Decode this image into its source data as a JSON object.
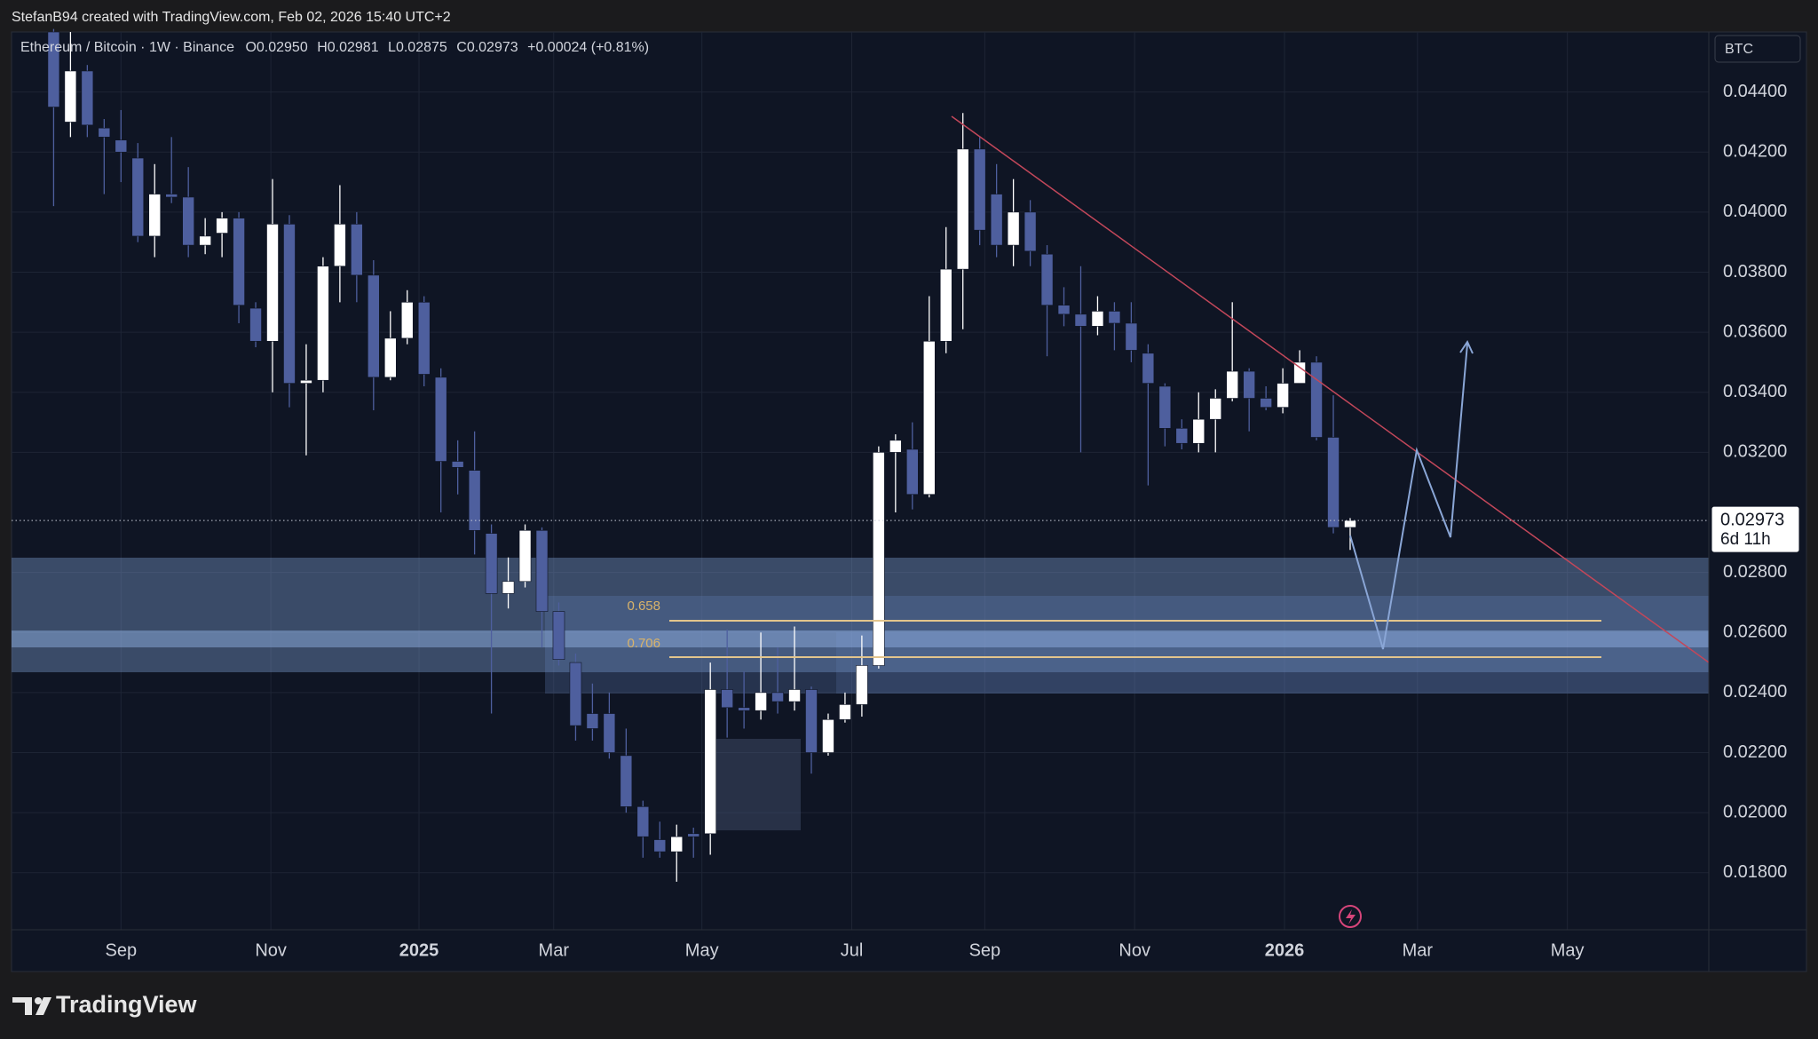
{
  "chart_data": {
    "type": "candlestick",
    "attribution": "StefanB94 created with TradingView.com, Feb 02, 2026 15:40 UTC+2",
    "title": "Ethereum / Bitcoin · 1W · Binance",
    "legend": [
      {
        "label": "O",
        "text": "0.02950"
      },
      {
        "label": "H",
        "text": "0.02981"
      },
      {
        "label": "L",
        "text": "0.02875"
      },
      {
        "label": "C",
        "text": "0.02973"
      }
    ],
    "change": "+0.00024 (+0.81%)",
    "currency": "BTC",
    "brand": "TradingView",
    "up_color": "#ffffff",
    "down_color": "#4e5f9e",
    "open": [
      0.046,
      0.043,
      0.0447,
      0.0428,
      0.0424,
      0.0418,
      0.0392,
      0.0406,
      0.0405,
      0.0389,
      0.0393,
      0.0398,
      0.0368,
      0.0357,
      0.0396,
      0.0343,
      0.0344,
      0.0382,
      0.0396,
      0.0379,
      0.0345,
      0.0358,
      0.037,
      0.0345,
      0.0317,
      0.0314,
      0.0293,
      0.0273,
      0.0277,
      0.0294,
      0.0267,
      0.025,
      0.0233,
      0.0233,
      0.0219,
      0.0202,
      0.0191,
      0.0187,
      0.0193,
      0.0193,
      0.0241,
      0.0235,
      0.0234,
      0.024,
      0.0237,
      0.0241,
      0.022,
      0.0231,
      0.0236,
      0.0249,
      0.032,
      0.0321,
      0.0306,
      0.0357,
      0.0381,
      0.0421,
      0.0406,
      0.0389,
      0.04,
      0.0386,
      0.0369,
      0.0366,
      0.0362,
      0.0367,
      0.0363,
      0.0353,
      0.0342,
      0.0328,
      0.0323,
      0.0331,
      0.0338,
      0.0347,
      0.0338,
      0.0335,
      0.0343,
      0.035,
      0.0325,
      0.0295
    ],
    "high": [
      0.0461,
      0.046,
      0.0449,
      0.0431,
      0.0434,
      0.0423,
      0.0416,
      0.0425,
      0.0415,
      0.0398,
      0.04,
      0.04,
      0.037,
      0.0411,
      0.0399,
      0.0356,
      0.0385,
      0.0409,
      0.04,
      0.0384,
      0.0367,
      0.0374,
      0.0372,
      0.0348,
      0.0324,
      0.0327,
      0.0296,
      0.0285,
      0.0296,
      0.0295,
      0.027,
      0.0253,
      0.0243,
      0.024,
      0.0228,
      0.0204,
      0.0197,
      0.0196,
      0.0195,
      0.025,
      0.0261,
      0.0247,
      0.026,
      0.0255,
      0.0262,
      0.0242,
      0.0233,
      0.024,
      0.0259,
      0.0322,
      0.0326,
      0.033,
      0.0372,
      0.0395,
      0.0433,
      0.0425,
      0.0416,
      0.0411,
      0.0404,
      0.0389,
      0.0375,
      0.0382,
      0.0372,
      0.037,
      0.037,
      0.0356,
      0.0343,
      0.0331,
      0.034,
      0.0341,
      0.037,
      0.0348,
      0.0342,
      0.0348,
      0.0354,
      0.0352,
      0.0339,
      0.02981
    ],
    "low": [
      0.0402,
      0.0425,
      0.0425,
      0.0406,
      0.041,
      0.039,
      0.0385,
      0.0403,
      0.0385,
      0.0386,
      0.0385,
      0.0363,
      0.0355,
      0.034,
      0.0335,
      0.0319,
      0.034,
      0.037,
      0.037,
      0.0334,
      0.0344,
      0.0356,
      0.0342,
      0.03,
      0.0306,
      0.0286,
      0.0233,
      0.0268,
      0.0275,
      0.0255,
      0.0249,
      0.0224,
      0.0224,
      0.0218,
      0.02,
      0.0185,
      0.0185,
      0.0177,
      0.0185,
      0.0186,
      0.0225,
      0.0228,
      0.0231,
      0.0233,
      0.0234,
      0.0213,
      0.0219,
      0.023,
      0.0232,
      0.0248,
      0.03,
      0.0301,
      0.0305,
      0.0353,
      0.0361,
      0.0389,
      0.0385,
      0.0382,
      0.0382,
      0.0352,
      0.0362,
      0.032,
      0.0359,
      0.0354,
      0.035,
      0.0309,
      0.0322,
      0.0321,
      0.032,
      0.032,
      0.0337,
      0.0327,
      0.0334,
      0.0333,
      0.0343,
      0.0324,
      0.0293,
      0.02875
    ],
    "close": [
      0.0435,
      0.0447,
      0.0429,
      0.0425,
      0.042,
      0.0392,
      0.0406,
      0.0405,
      0.0389,
      0.0392,
      0.0398,
      0.0369,
      0.0357,
      0.0396,
      0.0343,
      0.0344,
      0.0382,
      0.0396,
      0.0379,
      0.0345,
      0.0358,
      0.037,
      0.0346,
      0.0317,
      0.0315,
      0.0294,
      0.0273,
      0.0277,
      0.0294,
      0.0267,
      0.0251,
      0.0229,
      0.0228,
      0.022,
      0.0202,
      0.0192,
      0.0187,
      0.0192,
      0.0192,
      0.0241,
      0.0235,
      0.0234,
      0.024,
      0.0237,
      0.0241,
      0.022,
      0.0231,
      0.0236,
      0.0249,
      0.032,
      0.0324,
      0.0306,
      0.0357,
      0.0381,
      0.0421,
      0.0394,
      0.0389,
      0.04,
      0.0387,
      0.0369,
      0.0366,
      0.0362,
      0.0367,
      0.0363,
      0.0354,
      0.0343,
      0.0328,
      0.0323,
      0.0331,
      0.0338,
      0.0347,
      0.0338,
      0.0335,
      0.0343,
      0.035,
      0.0325,
      0.0295,
      0.02973
    ],
    "last_price": 0.02973,
    "countdown": "6d 11h",
    "fib_levels": [
      {
        "label": "0.658"
      },
      {
        "label": "0.706"
      }
    ],
    "xlim": [
      -2.5,
      98.3
    ],
    "xticks": [
      {
        "value": 4.0,
        "label": "Sep"
      },
      {
        "value": 12.9,
        "label": "Nov"
      },
      {
        "value": 21.7,
        "label": "2025"
      },
      {
        "value": 29.7,
        "label": "Mar"
      },
      {
        "value": 38.5,
        "label": "May"
      },
      {
        "value": 47.4,
        "label": "Jul"
      },
      {
        "value": 55.3,
        "label": "Sep"
      },
      {
        "value": 64.2,
        "label": "Nov"
      },
      {
        "value": 73.1,
        "label": "2026"
      },
      {
        "value": 81.0,
        "label": "Mar"
      },
      {
        "value": 89.9,
        "label": "May"
      }
    ],
    "ylim": [
      0.0161,
      0.046
    ],
    "yticks": [
      {
        "value": 0.018,
        "label": "0.01800"
      },
      {
        "value": 0.02,
        "label": "0.02000"
      },
      {
        "value": 0.022,
        "label": "0.02200"
      },
      {
        "value": 0.024,
        "label": "0.02400"
      },
      {
        "value": 0.026,
        "label": "0.02600"
      },
      {
        "value": 0.028,
        "label": "0.02800"
      },
      {
        "value": 0.032,
        "label": "0.03200"
      },
      {
        "value": 0.034,
        "label": "0.03400"
      },
      {
        "value": 0.036,
        "label": "0.03600"
      },
      {
        "value": 0.038,
        "label": "0.03800"
      },
      {
        "value": 0.04,
        "label": "0.04000"
      },
      {
        "value": 0.042,
        "label": "0.04200"
      },
      {
        "value": 0.044,
        "label": "0.04400"
      }
    ],
    "grid": true
  }
}
